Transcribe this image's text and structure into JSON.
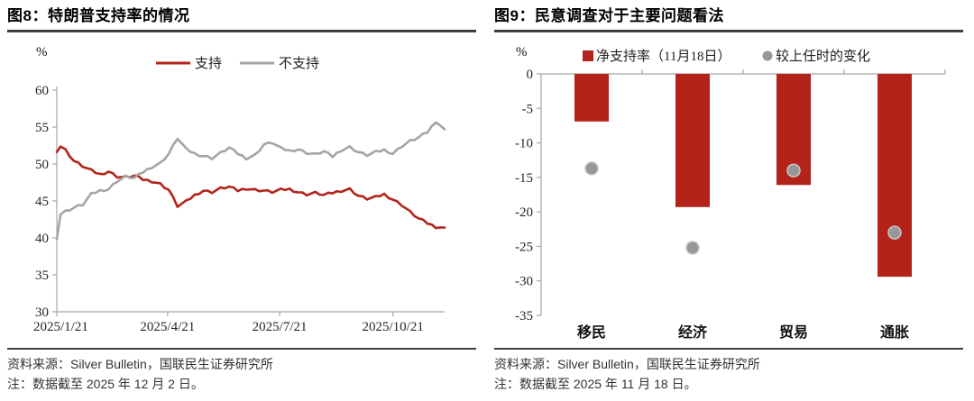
{
  "colors": {
    "red": "#B3231A",
    "gray_line": "#A5A5A5",
    "dot_fill": "#979797",
    "dot_ring": "#c7c7c7",
    "axis": "#a6a6a6",
    "tick_text": "#262626",
    "rule": "#3f3f3f"
  },
  "left_panel": {
    "title": "图8：特朗普支持率的情况",
    "unit": "%",
    "source": "资料来源：Silver Bulletin，国联民生证券研究所",
    "note": "注：数据截至 2025 年 12 月 2 日。"
  },
  "right_panel": {
    "title": "图9：民意调查对于主要问题看法",
    "unit": "%",
    "source": "资料来源：Silver Bulletin，国联民生证券研究所",
    "note": "注：数据截至 2025 年 11 月 18 日。"
  },
  "chart_data": [
    {
      "type": "line",
      "title": "特朗普支持率的情况",
      "ylabel": "%",
      "ylim": [
        30,
        60
      ],
      "yticks": [
        60,
        55,
        50,
        45,
        40,
        35,
        30
      ],
      "x_range_days": [
        0,
        315
      ],
      "xtick_days": [
        0,
        90,
        181,
        273
      ],
      "xtick_labels": [
        "2025/1/21",
        "2025/4/21",
        "2025/7/21",
        "2025/10/21"
      ],
      "legend_position": "top",
      "grid": false,
      "series": [
        {
          "name": "支持",
          "color_key": "red",
          "x_days": [
            0,
            3,
            7,
            14,
            21,
            28,
            35,
            42,
            49,
            56,
            63,
            70,
            77,
            84,
            91,
            98,
            105,
            112,
            119,
            126,
            133,
            140,
            147,
            154,
            161,
            168,
            175,
            182,
            189,
            196,
            203,
            210,
            217,
            224,
            231,
            238,
            245,
            252,
            259,
            266,
            273,
            280,
            287,
            294,
            301,
            308,
            315
          ],
          "values": [
            51.8,
            52.4,
            51.9,
            50.4,
            49.7,
            49.1,
            48.6,
            49.0,
            48.3,
            48.2,
            48.4,
            47.9,
            47.7,
            47.3,
            46.5,
            44.3,
            44.9,
            45.8,
            46.4,
            46.2,
            46.7,
            46.9,
            46.4,
            46.7,
            46.5,
            46.4,
            46.2,
            46.5,
            46.6,
            46.2,
            45.9,
            46.1,
            45.8,
            46.1,
            46.4,
            46.6,
            45.7,
            45.3,
            45.5,
            45.9,
            45.2,
            44.5,
            43.5,
            42.6,
            42.0,
            41.5,
            41.4
          ]
        },
        {
          "name": "不支持",
          "color_key": "gray_line",
          "x_days": [
            0,
            3,
            7,
            14,
            21,
            28,
            35,
            42,
            49,
            56,
            63,
            70,
            77,
            84,
            91,
            98,
            105,
            112,
            119,
            126,
            133,
            140,
            147,
            154,
            161,
            168,
            175,
            182,
            189,
            196,
            203,
            210,
            217,
            224,
            231,
            238,
            245,
            252,
            259,
            266,
            273,
            280,
            287,
            294,
            301,
            308,
            315
          ],
          "values": [
            40.0,
            43.2,
            43.6,
            44.1,
            44.5,
            45.9,
            46.4,
            46.6,
            47.7,
            48.3,
            48.1,
            48.9,
            49.6,
            50.1,
            51.4,
            53.5,
            52.0,
            51.4,
            51.1,
            50.8,
            51.5,
            52.2,
            51.4,
            50.8,
            51.2,
            52.6,
            52.9,
            52.1,
            51.8,
            52.0,
            51.5,
            51.3,
            51.7,
            51.0,
            51.9,
            52.3,
            51.6,
            51.2,
            51.6,
            51.9,
            51.4,
            52.4,
            53.1,
            53.6,
            54.3,
            55.8,
            54.7
          ]
        }
      ]
    },
    {
      "type": "bar+scatter",
      "title": "民意调查对于主要问题看法",
      "ylabel": "%",
      "categories": [
        "移民",
        "经济",
        "贸易",
        "通胀"
      ],
      "ylim": [
        -35,
        0
      ],
      "yticks": [
        0,
        -5,
        -10,
        -15,
        -20,
        -25,
        -30,
        -35
      ],
      "grid": false,
      "legend_position": "top",
      "bar_series": {
        "name": "净支持率（11月18日）",
        "values": [
          -6.9,
          -19.3,
          -16.1,
          -29.4
        ]
      },
      "dot_series": {
        "name": "较上任时的变化",
        "values": [
          -13.7,
          -25.2,
          -14.0,
          -23.0
        ]
      }
    }
  ]
}
